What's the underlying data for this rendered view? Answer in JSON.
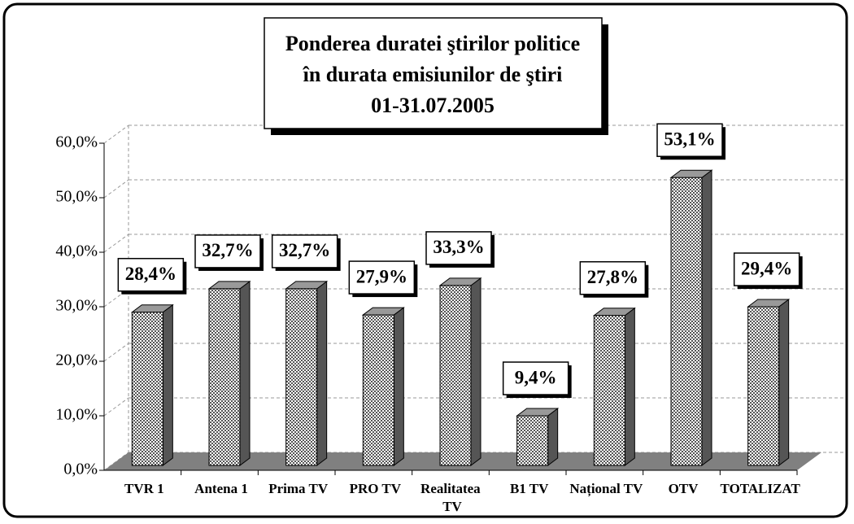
{
  "chart_data": {
    "type": "bar3d",
    "title": [
      "Ponderea duratei ştirilor politice",
      "în durata emisiunilor de ştiri",
      "01-31.07.2005"
    ],
    "categories": [
      "TVR 1",
      "Antena 1",
      "Prima TV",
      "PRO TV",
      "Realitatea TV",
      "B1 TV",
      "Național TV",
      "OTV",
      "TOTALIZAT"
    ],
    "values": [
      28.4,
      32.7,
      32.7,
      27.9,
      33.3,
      9.4,
      27.8,
      53.1,
      29.4
    ],
    "value_labels": [
      "28,4%",
      "32,7%",
      "32,7%",
      "27,9%",
      "33,3%",
      "9,4%",
      "27,8%",
      "53,1%",
      "29,4%"
    ],
    "ylim": [
      0,
      60
    ],
    "yticks": [
      {
        "value": 0,
        "label": "0,0%"
      },
      {
        "value": 10,
        "label": "10,0%"
      },
      {
        "value": 20,
        "label": "20,0%"
      },
      {
        "value": 30,
        "label": "30,0%"
      },
      {
        "value": 40,
        "label": "40,0%"
      },
      {
        "value": 50,
        "label": "50,0%"
      },
      {
        "value": 60,
        "label": "60,0%"
      }
    ],
    "grid": true,
    "color": "#bdbdbd"
  }
}
